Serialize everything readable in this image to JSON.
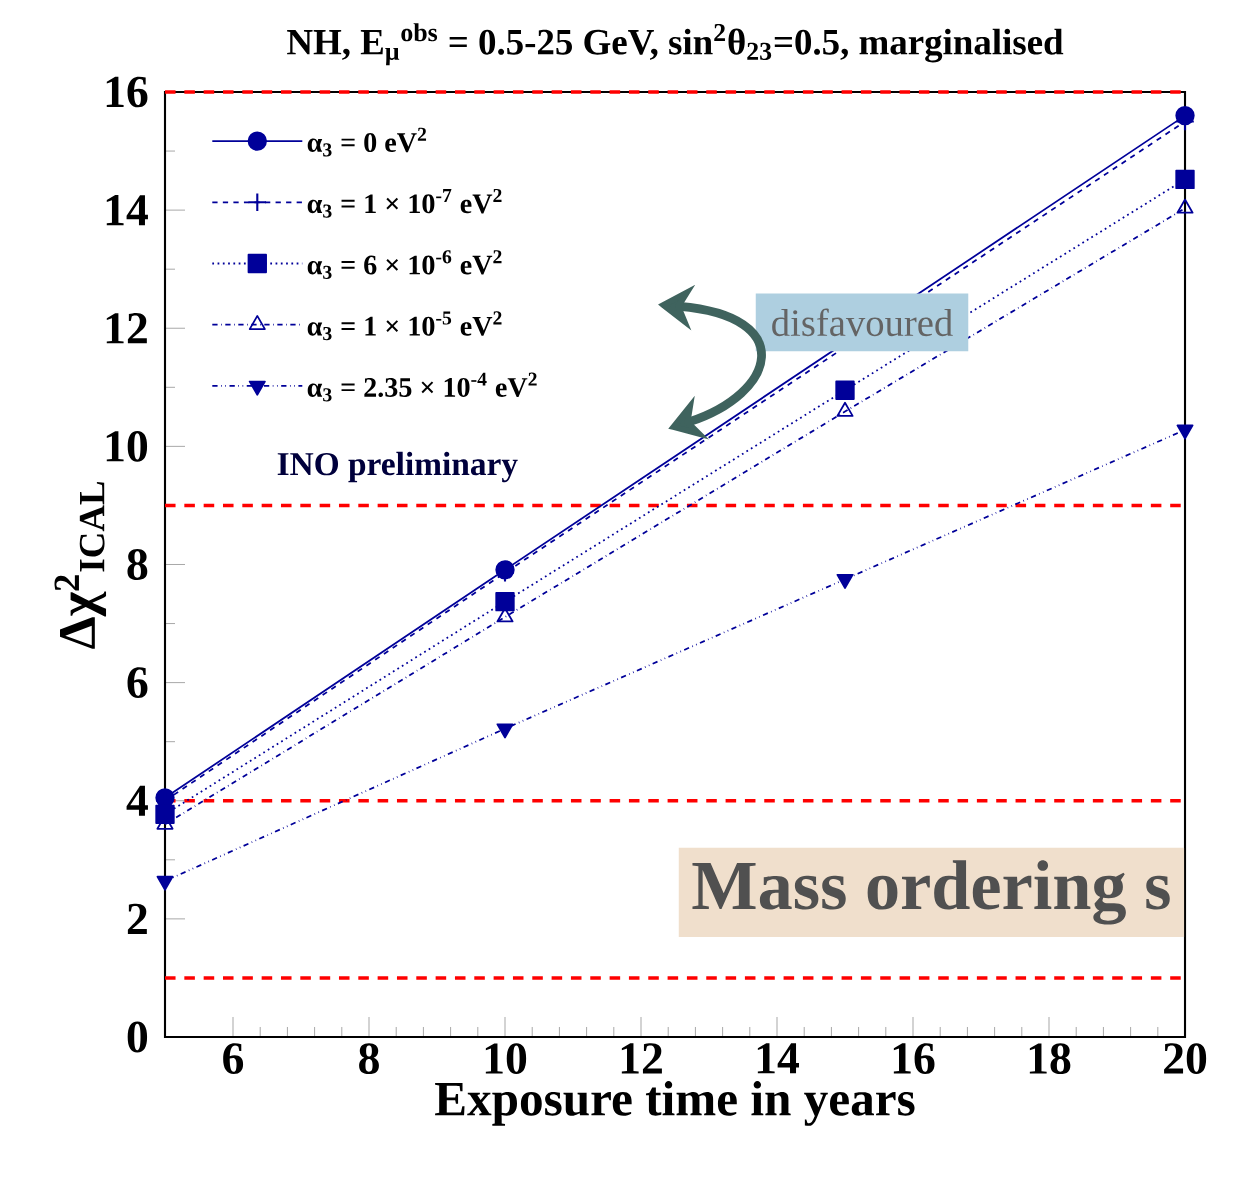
{
  "chart_data": {
    "type": "line",
    "title": "NH, E$_{μ}$$^{obs}$ = 0.5-25 GeV, sin$^{2}$θ$_{23}$=0.5, marginalised",
    "xlabel": "Exposure time in years",
    "ylabel": "Δχ$^{2}$$_{ICAL}$",
    "x": [
      5,
      10,
      15,
      20
    ],
    "series": [
      {
        "name": "α$_{3}$ = 0 eV$^{2}$",
        "color": "#000099",
        "marker": "circle",
        "line_style": "solid",
        "values": [
          4.05,
          7.91,
          null,
          15.6
        ]
      },
      {
        "name": "α$_{3}$ = 1 × 10$^{-7}$ eV$^{2}$",
        "color": "#000099",
        "marker": "cross",
        "line_style": "dashed",
        "values": [
          4.0,
          7.86,
          null,
          15.5
        ]
      },
      {
        "name": "α$_{3}$ = 6 × 10$^{-6}$ eV$^{2}$",
        "color": "#000099",
        "marker": "square",
        "line_style": "dotted",
        "values": [
          3.77,
          7.37,
          10.95,
          14.52
        ]
      },
      {
        "name": "α$_{3}$ = 1 × 10$^{-5}$ eV$^{2}$",
        "color": "#000099",
        "marker": "triangle",
        "line_style": "dash-dot",
        "values": [
          3.6,
          7.11,
          10.59,
          14.03
        ]
      },
      {
        "name": "α$_{3}$ = 2.35 × 10$^{-4}$ eV$^{2}$",
        "color": "#000099",
        "marker": "triangle-down",
        "line_style": "dash-dot-dot",
        "values": [
          2.64,
          5.22,
          7.75,
          10.28
        ]
      }
    ],
    "xlim": [
      5,
      20
    ],
    "ylim": [
      0,
      16
    ],
    "xticks": [
      6,
      8,
      10,
      12,
      14,
      16,
      18,
      20
    ],
    "yticks": [
      0,
      2,
      4,
      6,
      8,
      10,
      12,
      14,
      16
    ],
    "ref_lines": [
      {
        "axis": "y",
        "value": 1,
        "color": "#ff0000",
        "line_style": "dashed"
      },
      {
        "axis": "y",
        "value": 4,
        "color": "#ff0000",
        "line_style": "dashed"
      },
      {
        "axis": "y",
        "value": 9,
        "color": "#ff0000",
        "line_style": "dashed"
      },
      {
        "axis": "y",
        "value": 16,
        "color": "#ff0000",
        "line_style": "dashed"
      }
    ],
    "annotations": [
      "INO preliminary",
      "disfavoured",
      "Mass ordering s"
    ],
    "legend": "top left"
  }
}
